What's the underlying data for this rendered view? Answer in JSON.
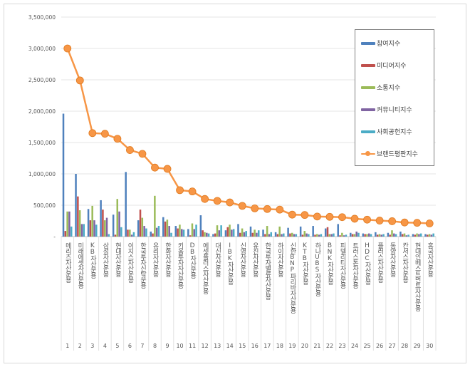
{
  "chart_data": {
    "type": "bar",
    "categories": [
      "메리츠자산운용",
      "미래에셋자산운용",
      "KB자산운용",
      "삼성자산운용",
      "현대자산운용",
      "이지스자산운용",
      "한국투자신탁운용",
      "유리자산운용",
      "한화자산운용",
      "키움투자자산운용",
      "DB자산운용",
      "에셋플러스자산운용",
      "대신자산운용",
      "IBK자산운용",
      "신영자산운용",
      "유진자산운용",
      "한국투자밸류자산운용",
      "하이자산운용",
      "신한BNP파리바자산운용",
      "KTB자산운용",
      "하나UBS자산운용",
      "BNK자산운용",
      "피델리티자산운용",
      "트러스톤자산운용",
      "HDC자산운용",
      "플러스자산운용",
      "동양자산운용",
      "칸서스자산운용",
      "현대인베스트먼트자산운용",
      "흥국자산운용"
    ],
    "ranks": [
      "1",
      "2",
      "3",
      "4",
      "5",
      "6",
      "7",
      "8",
      "9",
      "10",
      "11",
      "12",
      "13",
      "14",
      "15",
      "16",
      "17",
      "18",
      "19",
      "20",
      "21",
      "22",
      "23",
      "24",
      "25",
      "26",
      "27",
      "28",
      "29",
      "30"
    ],
    "ylim": [
      0,
      3500000
    ],
    "yticks": [
      "-",
      "500,000",
      "1,000,000",
      "1,500,000",
      "2,000,000",
      "2,500,000",
      "3,000,000",
      "3,500,000"
    ],
    "grid": true,
    "legend_position": "top-right",
    "series": [
      {
        "name": "참여지수",
        "type": "bar",
        "color": "#4f81bd",
        "values": [
          1960000,
          1000000,
          440000,
          580000,
          350000,
          1030000,
          260000,
          80000,
          310000,
          170000,
          120000,
          340000,
          40000,
          100000,
          200000,
          160000,
          110000,
          70000,
          140000,
          160000,
          170000,
          130000,
          200000,
          60000,
          50000,
          70000,
          60000,
          80000,
          40000,
          40000
        ]
      },
      {
        "name": "미디어지수",
        "type": "bar",
        "color": "#c0504d",
        "values": [
          90000,
          640000,
          260000,
          430000,
          30000,
          110000,
          430000,
          50000,
          240000,
          130000,
          20000,
          100000,
          50000,
          150000,
          60000,
          60000,
          40000,
          40000,
          50000,
          30000,
          30000,
          150000,
          20000,
          40000,
          40000,
          30000,
          30000,
          40000,
          30000,
          30000
        ]
      },
      {
        "name": "소통지수",
        "type": "bar",
        "color": "#9bbb59",
        "values": [
          400000,
          420000,
          490000,
          260000,
          600000,
          110000,
          300000,
          650000,
          270000,
          190000,
          210000,
          70000,
          180000,
          190000,
          130000,
          110000,
          170000,
          160000,
          60000,
          90000,
          40000,
          40000,
          60000,
          40000,
          40000,
          40000,
          100000,
          50000,
          50000,
          40000
        ]
      },
      {
        "name": "커뮤니티지수",
        "type": "bar",
        "color": "#8064a2",
        "values": [
          400000,
          200000,
          260000,
          300000,
          400000,
          30000,
          170000,
          140000,
          170000,
          120000,
          120000,
          60000,
          100000,
          110000,
          70000,
          60000,
          40000,
          40000,
          40000,
          50000,
          30000,
          40000,
          20000,
          80000,
          50000,
          30000,
          50000,
          20000,
          40000,
          30000
        ]
      },
      {
        "name": "사회공헌지수",
        "type": "bar",
        "color": "#4bacc6",
        "values": [
          160000,
          200000,
          190000,
          40000,
          150000,
          70000,
          130000,
          170000,
          60000,
          110000,
          190000,
          50000,
          180000,
          120000,
          90000,
          100000,
          70000,
          50000,
          40000,
          40000,
          40000,
          50000,
          30000,
          60000,
          40000,
          40000,
          40000,
          30000,
          50000,
          50000
        ]
      },
      {
        "name": "브랜드평판지수",
        "type": "line",
        "color": "#f79646",
        "values": [
          3000000,
          2490000,
          1650000,
          1640000,
          1560000,
          1380000,
          1320000,
          1100000,
          1080000,
          740000,
          720000,
          600000,
          570000,
          545000,
          490000,
          450000,
          440000,
          430000,
          350000,
          345000,
          320000,
          315000,
          310000,
          285000,
          270000,
          255000,
          245000,
          225000,
          220000,
          210000
        ]
      }
    ]
  }
}
